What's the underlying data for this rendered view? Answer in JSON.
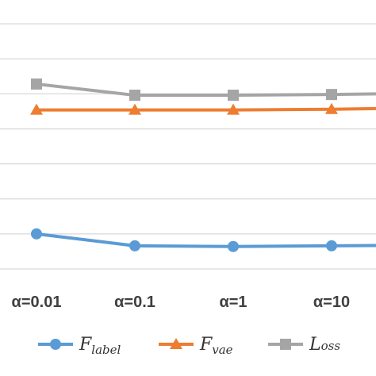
{
  "chart_data": {
    "type": "line",
    "categories": [
      "α=0.01",
      "α=0.1",
      "α=1",
      "α=10",
      ""
    ],
    "series": [
      {
        "name_main": "F",
        "name_sub": "label",
        "color": "#5B9BD5",
        "marker": "circle",
        "values": [
          0.3,
          0.317,
          0.318,
          0.317,
          0.316
        ]
      },
      {
        "name_main": "F",
        "name_sub": "vae",
        "color": "#ED7D31",
        "marker": "triangle",
        "values": [
          0.123,
          0.123,
          0.123,
          0.122,
          0.12
        ]
      },
      {
        "name_main": "L",
        "name_sub": "oss",
        "color": "#A5A5A5",
        "marker": "square",
        "values": [
          0.086,
          0.102,
          0.102,
          0.101,
          0.099
        ]
      }
    ],
    "y_gridlines": [
      0.0,
      0.05,
      0.1,
      0.15,
      0.2,
      0.25,
      0.3,
      0.35
    ],
    "ylim": [
      0.0,
      0.35
    ],
    "grid": true,
    "legend_position": "bottom",
    "gridline_color": "#d9d9d9"
  }
}
